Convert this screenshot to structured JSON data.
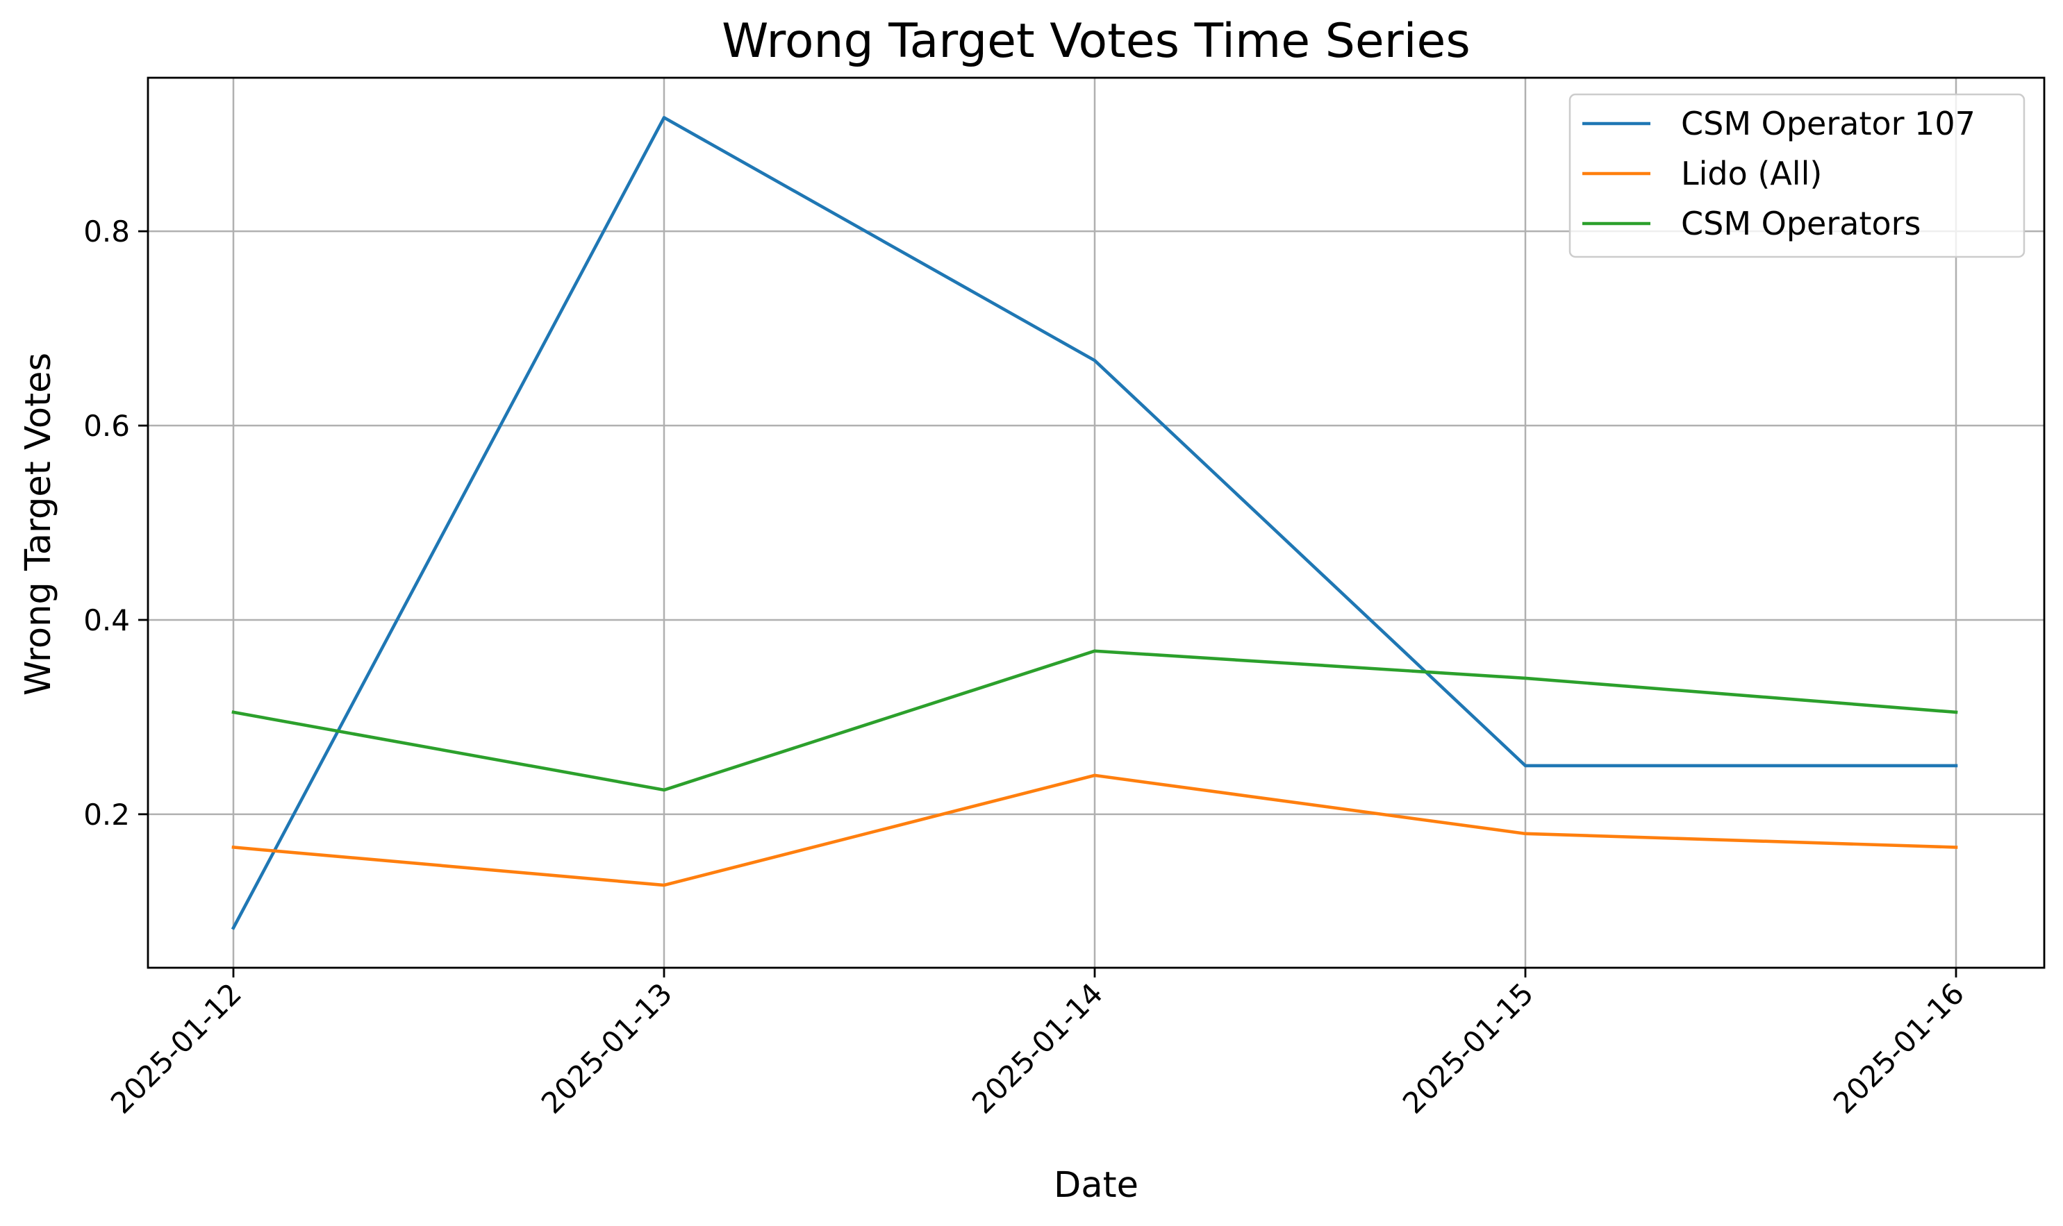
{
  "chart_data": {
    "type": "line",
    "title": "Wrong Target Votes Time Series",
    "xlabel": "Date",
    "ylabel": "Wrong Target Votes",
    "categories": [
      "2025-01-12",
      "2025-01-13",
      "2025-01-14",
      "2025-01-15",
      "2025-01-16"
    ],
    "y_ticks": [
      "0.2",
      "0.4",
      "0.6",
      "0.8"
    ],
    "ylim": [
      0.042,
      0.958
    ],
    "grid": true,
    "legend_position": "top-right",
    "series": [
      {
        "name": "CSM Operator 107",
        "color": "#1f77b4",
        "values": [
          0.083,
          0.917,
          0.667,
          0.25,
          0.25
        ]
      },
      {
        "name": "Lido (All)",
        "color": "#ff7f0e",
        "values": [
          0.166,
          0.127,
          0.24,
          0.18,
          0.166
        ]
      },
      {
        "name": "CSM Operators",
        "color": "#2ca02c",
        "values": [
          0.305,
          0.225,
          0.368,
          0.34,
          0.305
        ]
      }
    ]
  }
}
